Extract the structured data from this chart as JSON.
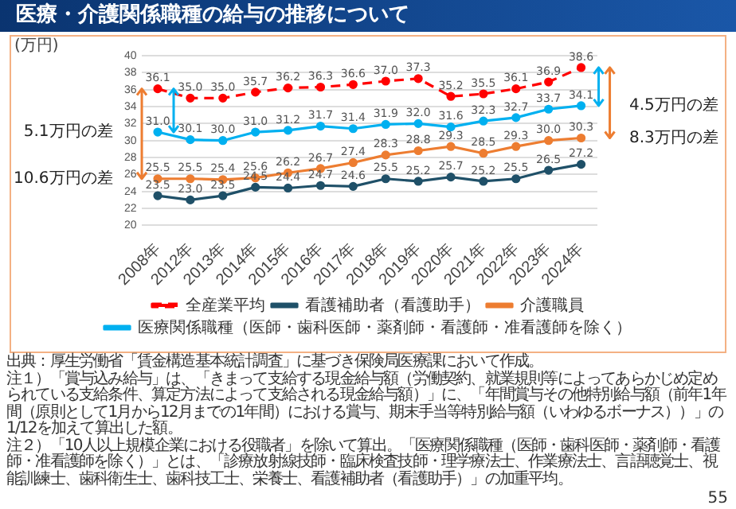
{
  "chart_data": {
    "type": "line",
    "title": "医療・介護関係職種の給与の推移について",
    "ylabel": "(万円)",
    "categories": [
      "2008年",
      "2012年",
      "2013年",
      "2014年",
      "2015年",
      "2016年",
      "2017年",
      "2018年",
      "2019年",
      "2020年",
      "2021年",
      "2022年",
      "2023年",
      "2024年"
    ],
    "series": [
      {
        "name": "全産業平均",
        "color": "#ff0000",
        "line_style": "dashed",
        "values": [
          36.1,
          35.0,
          35.0,
          35.7,
          36.2,
          36.3,
          36.6,
          37.0,
          37.3,
          35.2,
          35.5,
          36.1,
          36.9,
          38.6
        ],
        "value_labels": [
          "36.1",
          "35.0",
          "35.0",
          "35.7",
          "36.2",
          "36.3",
          "36.6",
          "37.0",
          "37.3",
          "35.2",
          "35.5",
          "36.1",
          "36.9",
          "38.6"
        ]
      },
      {
        "name": "看護補助者（看護助手）",
        "color": "#1f5068",
        "values": [
          23.5,
          23.0,
          23.5,
          24.5,
          24.4,
          24.7,
          24.6,
          25.5,
          25.2,
          25.7,
          25.2,
          25.5,
          26.5,
          27.2
        ],
        "value_labels": [
          "23.5",
          "23.0",
          "23.5",
          "24.5",
          "24.4",
          "24.7",
          "24.6",
          "25.5",
          "25.2",
          "25.7",
          "25.2",
          "25.5",
          "26.5",
          "27.2"
        ]
      },
      {
        "name": "介護職員",
        "color": "#ed7d31",
        "values": [
          25.5,
          25.5,
          25.4,
          25.6,
          26.2,
          26.7,
          27.4,
          28.3,
          28.8,
          29.3,
          28.5,
          29.3,
          30.0,
          30.3
        ],
        "value_labels": [
          "25.5",
          "25.5",
          "25.4",
          "25.6",
          "26.2",
          "26.7",
          "27.4",
          "28.3",
          "28.8",
          "29.3",
          "28.5",
          "29.3",
          "30.0",
          "30.3"
        ]
      },
      {
        "name": "医療関係職種（医師・歯科医師・薬剤師・看護師・准看護師を除く）",
        "color": "#00b0f0",
        "values": [
          31.0,
          30.1,
          30.0,
          31.0,
          31.2,
          31.7,
          31.4,
          31.9,
          32.0,
          31.6,
          32.3,
          32.7,
          33.7,
          34.1
        ],
        "value_labels": [
          "31.0",
          "30.1",
          "30.0",
          "31.0",
          "31.2",
          "31.7",
          "31.4",
          "31.9",
          "32.0",
          "31.6",
          "32.3",
          "32.7",
          "33.7",
          "34.1"
        ]
      }
    ],
    "ylim": [
      20,
      40
    ],
    "yticks": [
      20,
      22,
      24,
      26,
      28,
      30,
      32,
      34,
      36,
      38,
      40
    ],
    "grid": "y",
    "legend": "bottom",
    "marker": "circle",
    "line_style": "solid",
    "annotations": [
      {
        "text": "10.6万円の差",
        "x": "2008年",
        "y": 25.5
      },
      {
        "text": "5.1万円の差",
        "x": "2008年",
        "y": 31.0
      },
      {
        "text": "4.5万円の差",
        "x": "2024年",
        "y": 34.1
      },
      {
        "text": "8.3万円の差",
        "x": "2024年",
        "y": 30.3
      },
      "出典：厚生労働省「賃金構造基本統計調査」に基づき保険局医療課において作成。",
      "注１）「賞与込み給与」は、「きまって支給する現金給与額（労働契約、就業規則等によってあらかじめ定められている支給条件、算定方法によって支給される現金給与額）」に、「年間賞与その他特別給与額（前年1年間（原則として1月から12月までの1年間）における賞与、期末手当等特別給与額（いわゆるボーナス））」の1/12を加えて算出した額。",
      "注２）「10人以上規模企業における役職者」を除いて算出。「医療関係職種（医師・歯科医師・薬剤師・看護師・准看護師を除く）」とは、「診療放射線技師・臨床検査技師・理学療法士、作業療法士、言語聴覚士、視能訓練士、歯科衛生士、歯科技工士、栄養士、看護補助者（看護助手）」の加重平均。",
      "55"
    ]
  }
}
